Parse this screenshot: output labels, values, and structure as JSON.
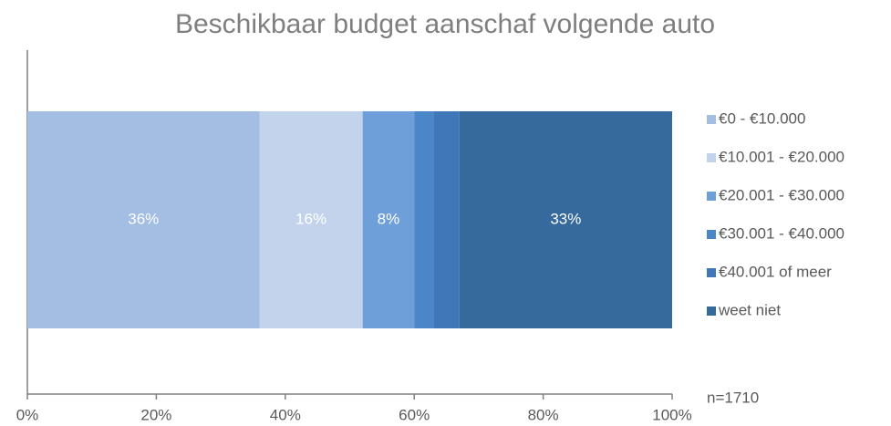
{
  "chart_data": {
    "type": "stacked_bar_horizontal",
    "title": "Beschikbaar budget aanschaf volgende auto",
    "annotation": "n=1710",
    "series": [
      {
        "name": "€0 - €10.000",
        "color": "#a3bde3",
        "values": [
          36
        ],
        "value_labels": [
          "36%"
        ]
      },
      {
        "name": "€10.001 - €20.000",
        "color": "#c3d3ec",
        "values": [
          16
        ],
        "value_labels": [
          "16%"
        ]
      },
      {
        "name": "€20.001 - €30.000",
        "color": "#6f9fd9",
        "values": [
          8
        ],
        "value_labels": [
          "8%"
        ]
      },
      {
        "name": "€30.001 - €40.000",
        "color": "#4a86c8",
        "values": [
          3
        ]
      },
      {
        "name": "€40.001 of meer",
        "color": "#3f77b8",
        "values": [
          4
        ]
      },
      {
        "name": "weet niet",
        "color": "#366a9d",
        "values": [
          33
        ],
        "value_labels": [
          "33%"
        ]
      }
    ],
    "xlim": [
      0,
      100
    ],
    "xticks": [
      {
        "value": 0,
        "label": "0%"
      },
      {
        "value": 20,
        "label": "20%"
      },
      {
        "value": 40,
        "label": "40%"
      },
      {
        "value": 60,
        "label": "60%"
      },
      {
        "value": 80,
        "label": "80%"
      },
      {
        "value": 100,
        "label": "100%"
      }
    ],
    "legend": "right"
  }
}
